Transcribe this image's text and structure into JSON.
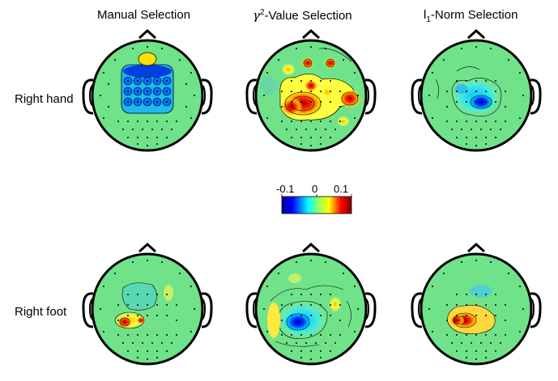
{
  "columns": {
    "manual": "Manual Selection",
    "gamma_base": "γ",
    "gamma_sup": "2",
    "gamma_rest": "-Value Selection",
    "l1_base": "l",
    "l1_sub": "1",
    "l1_rest": "-Norm Selection"
  },
  "rows": {
    "hand": "Right hand",
    "foot": "Right foot"
  },
  "colorbar": {
    "ticks": [
      "-0.1",
      "0",
      "0.1"
    ],
    "range": [
      -0.1,
      0.1
    ],
    "colormap": [
      "#00008f",
      "#0000ff",
      "#00ffff",
      "#ffff00",
      "#ff0000",
      "#800000"
    ]
  },
  "colors": {
    "background_scalp": "#6fe08a"
  }
}
